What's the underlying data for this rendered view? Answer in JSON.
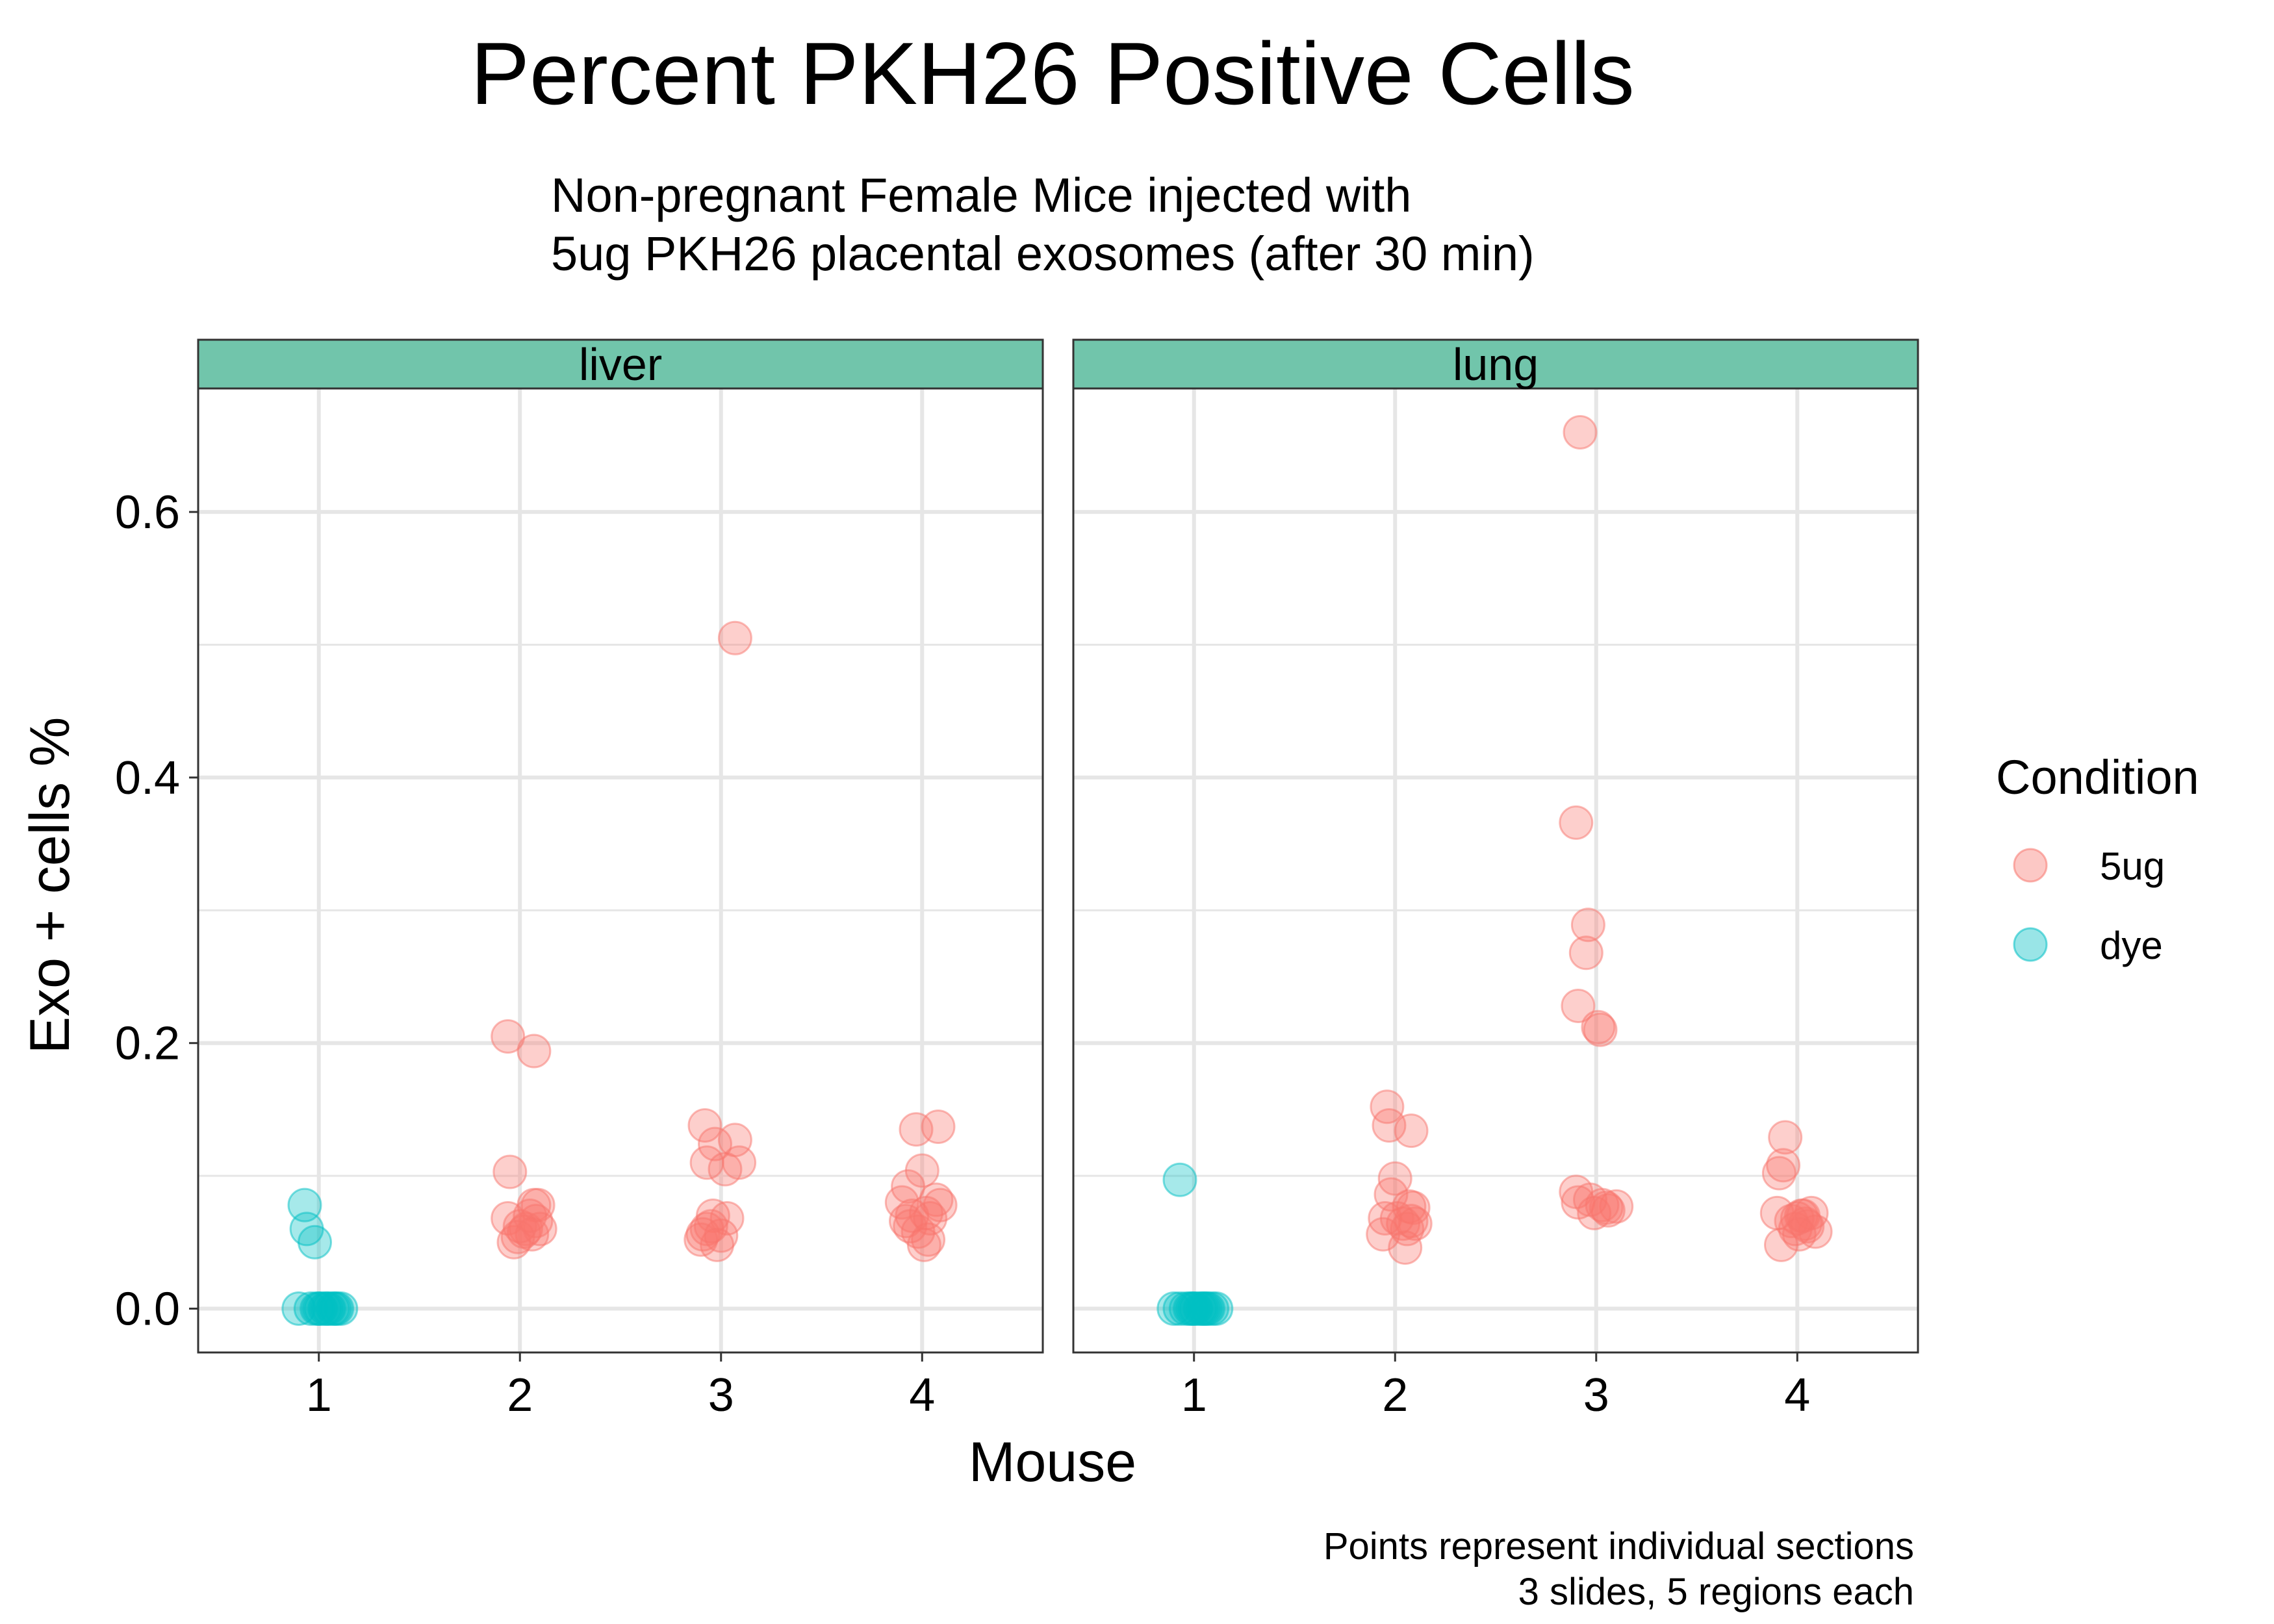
{
  "chart_data": {
    "type": "scatter",
    "title": "Percent PKH26 Positive Cells",
    "subtitle_lines": [
      "Non-pregnant Female Mice injected with",
      "5ug PKH26 placental exosomes (after 30 min)"
    ],
    "xlabel": "Mouse",
    "ylabel": "Exo + cells %",
    "caption_lines": [
      "Points represent individual sections",
      "3 slides, 5 regions each"
    ],
    "x_categories": [
      "1",
      "2",
      "3",
      "4"
    ],
    "y_ticks": [
      0.0,
      0.2,
      0.4,
      0.6
    ],
    "y_tick_labels": [
      "0.0",
      "0.2",
      "0.4",
      "0.6"
    ],
    "ylim": [
      -0.033,
      0.693
    ],
    "grid": true,
    "legend": {
      "title": "Condition",
      "placement": "right",
      "entries": [
        {
          "label": "5ug",
          "color": "#F8766D"
        },
        {
          "label": "dye",
          "color": "#00BFC4"
        }
      ]
    },
    "panels": [
      {
        "label": "liver",
        "series": [
          {
            "name": "5ug",
            "points": [
              [
                1.94,
                0.205
              ],
              [
                2.07,
                0.194
              ],
              [
                1.95,
                0.103
              ],
              [
                1.94,
                0.068
              ],
              [
                1.97,
                0.05
              ],
              [
                2.03,
                0.06
              ],
              [
                2.07,
                0.078
              ],
              [
                2.09,
                0.078
              ],
              [
                2.06,
                0.056
              ],
              [
                2.02,
                0.058
              ],
              [
                2.0,
                0.062
              ],
              [
                2.08,
                0.066
              ],
              [
                1.99,
                0.054
              ],
              [
                2.05,
                0.07
              ],
              [
                2.1,
                0.06
              ],
              [
                3.07,
                0.505
              ],
              [
                2.92,
                0.138
              ],
              [
                2.97,
                0.124
              ],
              [
                3.07,
                0.127
              ],
              [
                2.93,
                0.11
              ],
              [
                3.02,
                0.105
              ],
              [
                3.09,
                0.11
              ],
              [
                2.96,
                0.07
              ],
              [
                3.03,
                0.068
              ],
              [
                2.93,
                0.06
              ],
              [
                2.91,
                0.056
              ],
              [
                2.98,
                0.048
              ],
              [
                3.0,
                0.055
              ],
              [
                2.95,
                0.062
              ],
              [
                2.9,
                0.052
              ],
              [
                3.97,
                0.135
              ],
              [
                4.08,
                0.137
              ],
              [
                4.0,
                0.104
              ],
              [
                3.93,
                0.092
              ],
              [
                3.9,
                0.08
              ],
              [
                4.07,
                0.082
              ],
              [
                4.09,
                0.078
              ],
              [
                3.95,
                0.07
              ],
              [
                4.02,
                0.072
              ],
              [
                3.92,
                0.066
              ],
              [
                3.98,
                0.058
              ],
              [
                4.03,
                0.052
              ],
              [
                4.01,
                0.048
              ],
              [
                3.94,
                0.062
              ],
              [
                4.04,
                0.068
              ]
            ]
          },
          {
            "name": "dye",
            "points": [
              [
                0.93,
                0.078
              ],
              [
                0.94,
                0.06
              ],
              [
                0.98,
                0.05
              ],
              [
                0.9,
                0.0
              ],
              [
                0.96,
                0.0
              ],
              [
                0.99,
                0.0
              ],
              [
                1.01,
                0.0
              ],
              [
                1.03,
                0.0
              ],
              [
                1.05,
                0.0
              ],
              [
                1.07,
                0.0
              ],
              [
                1.09,
                0.0
              ],
              [
                1.11,
                0.0
              ],
              [
                1.0,
                0.0
              ],
              [
                1.04,
                0.0
              ],
              [
                1.08,
                0.0
              ]
            ]
          }
        ]
      },
      {
        "label": "lung",
        "series": [
          {
            "name": "5ug",
            "points": [
              [
                1.96,
                0.152
              ],
              [
                1.97,
                0.138
              ],
              [
                2.08,
                0.134
              ],
              [
                2.0,
                0.098
              ],
              [
                1.98,
                0.086
              ],
              [
                2.07,
                0.077
              ],
              [
                2.09,
                0.076
              ],
              [
                1.95,
                0.068
              ],
              [
                2.04,
                0.064
              ],
              [
                2.06,
                0.06
              ],
              [
                2.1,
                0.064
              ],
              [
                1.94,
                0.056
              ],
              [
                2.05,
                0.046
              ],
              [
                2.01,
                0.068
              ],
              [
                2.08,
                0.066
              ],
              [
                2.92,
                0.66
              ],
              [
                2.9,
                0.366
              ],
              [
                2.96,
                0.289
              ],
              [
                2.95,
                0.268
              ],
              [
                2.91,
                0.228
              ],
              [
                3.01,
                0.212
              ],
              [
                3.02,
                0.21
              ],
              [
                2.9,
                0.088
              ],
              [
                2.91,
                0.08
              ],
              [
                2.99,
                0.072
              ],
              [
                3.06,
                0.074
              ],
              [
                3.1,
                0.077
              ],
              [
                3.03,
                0.078
              ],
              [
                2.97,
                0.082
              ],
              [
                3.05,
                0.076
              ],
              [
                3.94,
                0.129
              ],
              [
                3.93,
                0.108
              ],
              [
                3.91,
                0.102
              ],
              [
                3.9,
                0.072
              ],
              [
                4.02,
                0.07
              ],
              [
                4.07,
                0.072
              ],
              [
                4.09,
                0.058
              ],
              [
                3.92,
                0.048
              ],
              [
                3.99,
                0.06
              ],
              [
                4.04,
                0.064
              ],
              [
                3.97,
                0.066
              ],
              [
                4.0,
                0.068
              ],
              [
                4.05,
                0.062
              ],
              [
                4.01,
                0.056
              ],
              [
                4.03,
                0.07
              ]
            ]
          },
          {
            "name": "dye",
            "points": [
              [
                0.93,
                0.097
              ],
              [
                0.9,
                0.0
              ],
              [
                0.93,
                0.0
              ],
              [
                0.96,
                0.0
              ],
              [
                0.99,
                0.0
              ],
              [
                1.01,
                0.0
              ],
              [
                1.03,
                0.0
              ],
              [
                1.05,
                0.0
              ],
              [
                1.07,
                0.0
              ],
              [
                1.09,
                0.0
              ],
              [
                1.11,
                0.0
              ],
              [
                0.98,
                0.0
              ],
              [
                1.0,
                0.0
              ],
              [
                1.04,
                0.0
              ],
              [
                1.06,
                0.0
              ]
            ]
          }
        ]
      }
    ],
    "style": {
      "strip_fill": "#71C5AB",
      "grid_color": "#E6E6E6",
      "panel_border": "#333333",
      "point_color_5ug": "#F8766D",
      "point_color_dye": "#00BFC4"
    }
  }
}
